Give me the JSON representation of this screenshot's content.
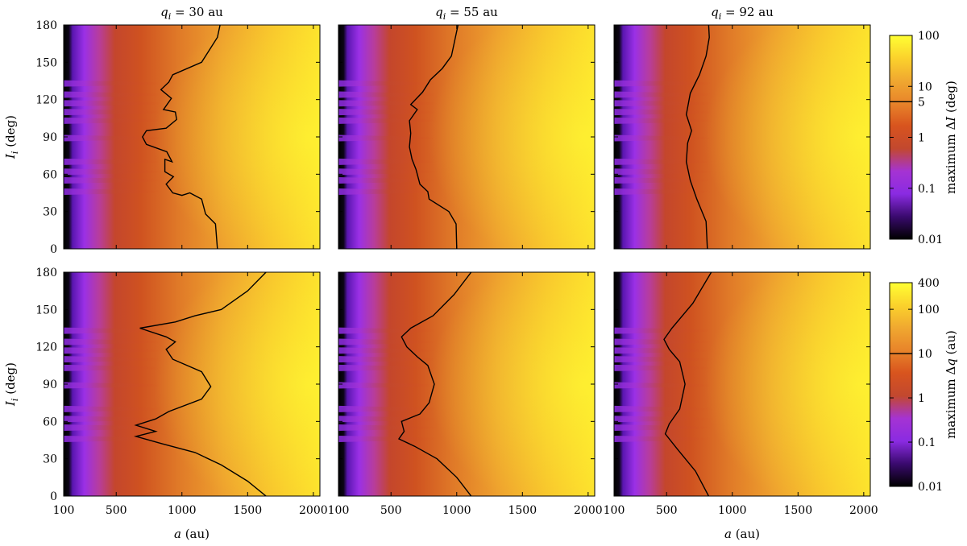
{
  "colors": {
    "colormap": [
      "#000000",
      "#3a0a6e",
      "#8a2be2",
      "#a533d3",
      "#c2482f",
      "#d8541e",
      "#e8842a",
      "#f0a830",
      "#fbd22c",
      "#ffff33"
    ],
    "contour": "#000000"
  },
  "chart_data": [
    {
      "type": "heatmap",
      "panel": "top-left",
      "title": "q_i = 30 au",
      "title_parts": [
        "q",
        "i",
        " = 30 au"
      ],
      "x": {
        "label": "a (au)",
        "lim": [
          100,
          2050
        ],
        "ticks": [
          "100",
          "500",
          "1000",
          "1500",
          "2000"
        ],
        "tick_values": [
          100,
          500,
          1000,
          1500,
          2000
        ],
        "tick_labels_shown": false
      },
      "y": {
        "label": "I_i (deg)",
        "lim": [
          0,
          180
        ],
        "ticks": [
          "0",
          "30",
          "60",
          "90",
          "120",
          "150",
          "180"
        ],
        "tick_values": [
          0,
          30,
          60,
          90,
          120,
          150,
          180
        ],
        "tick_labels_shown": true
      },
      "quantity": "maximum ΔI (deg)",
      "contour_level": 5,
      "resonances_deg": [
        46,
        55,
        62,
        70,
        89,
        103,
        110,
        117,
        124,
        133
      ],
      "contour": [
        [
          1270,
          0
        ],
        [
          1255,
          20
        ],
        [
          1180,
          28
        ],
        [
          1150,
          40
        ],
        [
          1060,
          45
        ],
        [
          1000,
          43
        ],
        [
          930,
          45
        ],
        [
          880,
          52
        ],
        [
          935,
          58
        ],
        [
          870,
          62
        ],
        [
          870,
          72
        ],
        [
          925,
          70
        ],
        [
          885,
          78
        ],
        [
          730,
          84
        ],
        [
          700,
          90
        ],
        [
          730,
          95
        ],
        [
          880,
          97
        ],
        [
          960,
          104
        ],
        [
          950,
          110
        ],
        [
          860,
          112
        ],
        [
          920,
          121
        ],
        [
          840,
          128
        ],
        [
          900,
          134
        ],
        [
          930,
          140
        ],
        [
          1150,
          150
        ],
        [
          1270,
          170
        ],
        [
          1290,
          180
        ]
      ]
    },
    {
      "type": "heatmap",
      "panel": "top-middle",
      "title": "q_i = 55 au",
      "title_parts": [
        "q",
        "i",
        " = 55 au"
      ],
      "x": {
        "label": "a (au)",
        "lim": [
          100,
          2050
        ],
        "ticks": [
          "100",
          "500",
          "1000",
          "1500",
          "2000"
        ],
        "tick_values": [
          100,
          500,
          1000,
          1500,
          2000
        ],
        "tick_labels_shown": false
      },
      "y": {
        "lim": [
          0,
          180
        ],
        "ticks": [
          "0",
          "30",
          "60",
          "90",
          "120",
          "150",
          "180"
        ],
        "tick_values": [
          0,
          30,
          60,
          90,
          120,
          150,
          180
        ],
        "tick_labels_shown": false
      },
      "quantity": "maximum ΔI (deg)",
      "contour_level": 5,
      "resonances_deg": [
        46,
        55,
        62,
        70,
        89,
        103,
        110,
        117,
        124,
        133
      ],
      "contour": [
        [
          1000,
          0
        ],
        [
          995,
          20
        ],
        [
          940,
          30
        ],
        [
          790,
          40
        ],
        [
          780,
          46
        ],
        [
          720,
          52
        ],
        [
          690,
          64
        ],
        [
          660,
          72
        ],
        [
          640,
          82
        ],
        [
          650,
          93
        ],
        [
          640,
          103
        ],
        [
          700,
          112
        ],
        [
          650,
          116
        ],
        [
          740,
          126
        ],
        [
          800,
          136
        ],
        [
          890,
          145
        ],
        [
          960,
          155
        ],
        [
          1010,
          180
        ]
      ]
    },
    {
      "type": "heatmap",
      "panel": "top-right",
      "title": "q_i = 92 au",
      "title_parts": [
        "q",
        "i",
        " = 92 au"
      ],
      "x": {
        "label": "a (au)",
        "lim": [
          100,
          2050
        ],
        "ticks": [
          "100",
          "500",
          "1000",
          "1500",
          "2000"
        ],
        "tick_values": [
          100,
          500,
          1000,
          1500,
          2000
        ],
        "tick_labels_shown": false
      },
      "y": {
        "lim": [
          0,
          180
        ],
        "ticks": [
          "0",
          "30",
          "60",
          "90",
          "120",
          "150",
          "180"
        ],
        "tick_values": [
          0,
          30,
          60,
          90,
          120,
          150,
          180
        ],
        "tick_labels_shown": false
      },
      "quantity": "maximum ΔI (deg)",
      "contour_level": 5,
      "resonances_deg": [
        46,
        55,
        62,
        70,
        89,
        103,
        110,
        117,
        124,
        133
      ],
      "contour": [
        [
          810,
          0
        ],
        [
          800,
          22
        ],
        [
          730,
          40
        ],
        [
          680,
          55
        ],
        [
          650,
          70
        ],
        [
          660,
          85
        ],
        [
          690,
          95
        ],
        [
          650,
          108
        ],
        [
          680,
          125
        ],
        [
          750,
          140
        ],
        [
          800,
          155
        ],
        [
          825,
          170
        ],
        [
          820,
          180
        ]
      ]
    },
    {
      "type": "heatmap",
      "panel": "bottom-left",
      "title": "",
      "x": {
        "label": "a (au)",
        "lim": [
          100,
          2050
        ],
        "ticks": [
          "100",
          "500",
          "1000",
          "1500",
          "2000"
        ],
        "tick_values": [
          100,
          500,
          1000,
          1500,
          2000
        ],
        "tick_labels_shown": true
      },
      "y": {
        "label": "I_i (deg)",
        "lim": [
          0,
          180
        ],
        "ticks": [
          "0",
          "30",
          "60",
          "90",
          "120",
          "150",
          "180"
        ],
        "tick_values": [
          0,
          30,
          60,
          90,
          120,
          150,
          180
        ],
        "tick_labels_shown": true
      },
      "quantity": "maximum Δq (au)",
      "contour_level": 10,
      "resonances_deg": [
        46,
        55,
        62,
        70,
        89,
        103,
        110,
        117,
        124,
        133
      ],
      "contour": [
        [
          1640,
          0
        ],
        [
          1500,
          12
        ],
        [
          1300,
          25
        ],
        [
          1100,
          35
        ],
        [
          850,
          42
        ],
        [
          650,
          48
        ],
        [
          800,
          52
        ],
        [
          650,
          57
        ],
        [
          800,
          62
        ],
        [
          900,
          68
        ],
        [
          1150,
          78
        ],
        [
          1220,
          88
        ],
        [
          1150,
          100
        ],
        [
          930,
          110
        ],
        [
          880,
          118
        ],
        [
          950,
          124
        ],
        [
          880,
          128
        ],
        [
          680,
          135
        ],
        [
          950,
          140
        ],
        [
          1100,
          145
        ],
        [
          1300,
          150
        ],
        [
          1500,
          165
        ],
        [
          1640,
          180
        ]
      ]
    },
    {
      "type": "heatmap",
      "panel": "bottom-middle",
      "title": "",
      "x": {
        "label": "",
        "lim": [
          100,
          2050
        ],
        "ticks": [
          "100",
          "500",
          "1000",
          "1500",
          "2000"
        ],
        "tick_values": [
          100,
          500,
          1000,
          1500,
          2000
        ],
        "tick_labels_shown": true
      },
      "y": {
        "lim": [
          0,
          180
        ],
        "ticks": [
          "0",
          "30",
          "60",
          "90",
          "120",
          "150",
          "180"
        ],
        "tick_values": [
          0,
          30,
          60,
          90,
          120,
          150,
          180
        ],
        "tick_labels_shown": false
      },
      "quantity": "maximum Δq (au)",
      "contour_level": 10,
      "resonances_deg": [
        46,
        55,
        62,
        70,
        89,
        103,
        110,
        117,
        124,
        133
      ],
      "contour": [
        [
          1110,
          0
        ],
        [
          1000,
          15
        ],
        [
          850,
          30
        ],
        [
          680,
          40
        ],
        [
          560,
          46
        ],
        [
          600,
          52
        ],
        [
          580,
          60
        ],
        [
          720,
          66
        ],
        [
          790,
          75
        ],
        [
          830,
          90
        ],
        [
          780,
          105
        ],
        [
          700,
          112
        ],
        [
          620,
          120
        ],
        [
          580,
          128
        ],
        [
          650,
          135
        ],
        [
          820,
          145
        ],
        [
          980,
          162
        ],
        [
          1110,
          180
        ]
      ]
    },
    {
      "type": "heatmap",
      "panel": "bottom-right",
      "title": "q_i = 92 au",
      "x": {
        "label": "a (au)",
        "lim": [
          100,
          2050
        ],
        "ticks": [
          "100",
          "500",
          "1000",
          "1500",
          "2000"
        ],
        "tick_values": [
          100,
          500,
          1000,
          1500,
          2000
        ],
        "tick_labels_shown": true
      },
      "y": {
        "lim": [
          0,
          180
        ],
        "ticks": [
          "0",
          "30",
          "60",
          "90",
          "120",
          "150",
          "180"
        ],
        "tick_values": [
          0,
          30,
          60,
          90,
          120,
          150,
          180
        ],
        "tick_labels_shown": false
      },
      "quantity": "maximum Δq (au)",
      "contour_level": 10,
      "resonances_deg": [
        46,
        55,
        62,
        70,
        89,
        103,
        110,
        117,
        124,
        133
      ],
      "contour": [
        [
          820,
          0
        ],
        [
          720,
          20
        ],
        [
          580,
          38
        ],
        [
          490,
          50
        ],
        [
          520,
          58
        ],
        [
          600,
          70
        ],
        [
          640,
          90
        ],
        [
          600,
          108
        ],
        [
          520,
          118
        ],
        [
          480,
          126
        ],
        [
          540,
          135
        ],
        [
          700,
          155
        ],
        [
          840,
          180
        ]
      ]
    }
  ],
  "colorbars": [
    {
      "label": "maximum ΔI (deg)",
      "label_parts": [
        "maximum Δ",
        "I",
        " (deg)"
      ],
      "scale": "log",
      "lim": [
        0.01,
        100
      ],
      "ticks": [
        "0.01",
        "0.1",
        "1",
        "5",
        "10",
        "100"
      ],
      "tick_values": [
        0.01,
        0.1,
        1,
        5,
        10,
        100
      ],
      "contour_level": 5
    },
    {
      "label": "maximum Δq (au)",
      "label_parts": [
        "maximum Δ",
        "q",
        " (au)"
      ],
      "scale": "log",
      "lim": [
        0.01,
        400
      ],
      "ticks": [
        "0.01",
        "0.1",
        "1",
        "10",
        "100",
        "400"
      ],
      "tick_values": [
        0.01,
        0.1,
        1,
        10,
        100,
        400
      ],
      "contour_level": 10
    }
  ]
}
